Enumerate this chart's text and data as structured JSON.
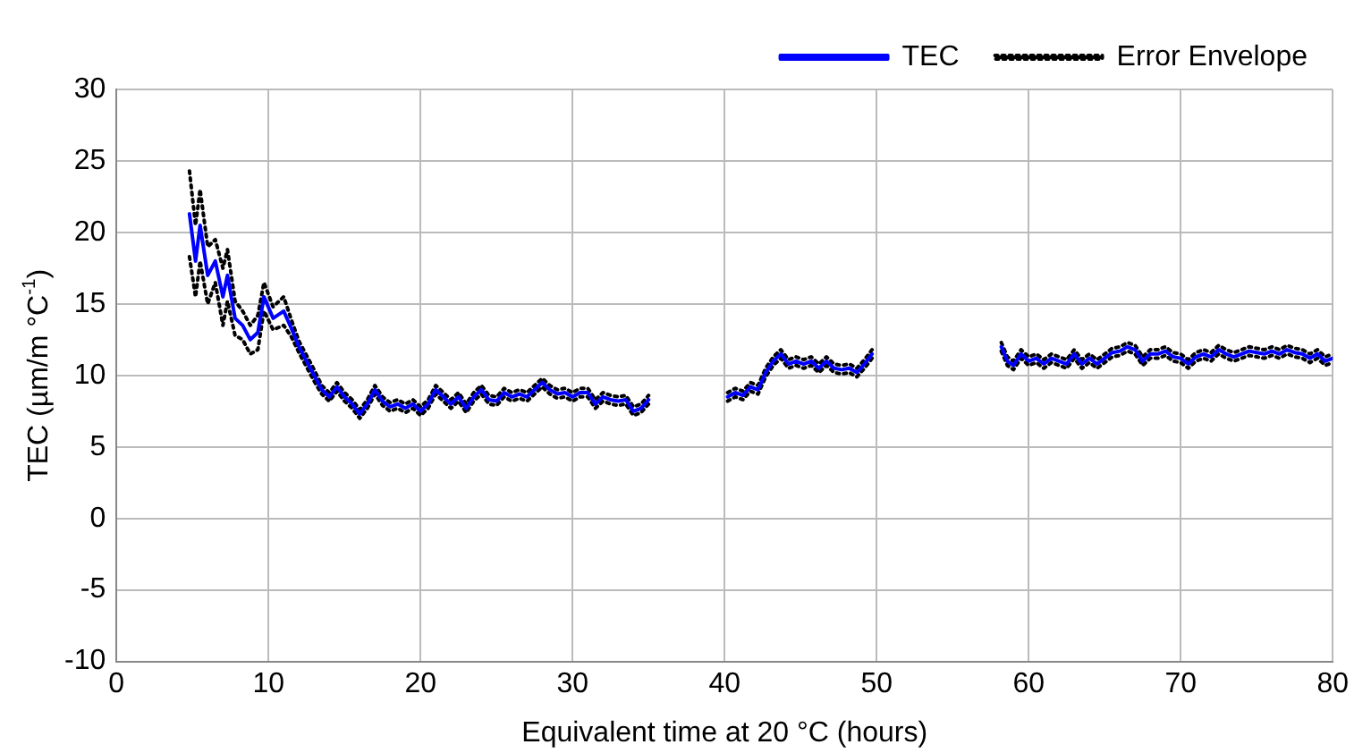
{
  "chart_data": {
    "type": "line",
    "xlabel": "Equivalent time at 20 °C (hours)",
    "ylabel": "TEC (µm/m °C$^{-1}$)",
    "xlim": [
      0,
      80
    ],
    "xticks": [
      0,
      10,
      20,
      30,
      40,
      50,
      60,
      70,
      80
    ],
    "ylim": [
      -10,
      30
    ],
    "yticks": [
      -10,
      -5,
      0,
      5,
      10,
      15,
      20,
      25,
      30
    ],
    "grid": true,
    "legend": "top right",
    "marker": "none",
    "x": [
      4.8,
      5.2,
      5.5,
      6.0,
      6.5,
      7.0,
      7.3,
      7.8,
      8.3,
      8.8,
      9.3,
      9.7,
      10.3,
      11.0,
      11.5,
      12.0,
      12.5,
      13.0,
      13.5,
      14.0,
      14.5,
      15.0,
      15.5,
      16.0,
      16.5,
      17.0,
      17.5,
      18.0,
      18.5,
      19.0,
      19.5,
      20.0,
      20.5,
      21.0,
      21.5,
      22.0,
      22.5,
      23.0,
      23.5,
      24.0,
      24.5,
      25.0,
      25.5,
      26.0,
      26.5,
      27.0,
      27.5,
      28.0,
      28.5,
      29.0,
      29.5,
      30.0,
      30.5,
      31.0,
      31.5,
      32.0,
      32.5,
      33.0,
      33.5,
      34.0,
      34.5,
      35.0,
      37.5,
      40.2,
      40.7,
      41.2,
      41.7,
      42.2,
      42.7,
      43.2,
      43.7,
      44.2,
      44.7,
      45.2,
      45.7,
      46.2,
      46.7,
      47.2,
      47.7,
      48.2,
      48.7,
      49.2,
      49.7,
      54.0,
      58.2,
      58.6,
      59.0,
      59.5,
      60.0,
      60.5,
      61.0,
      61.5,
      62.0,
      62.5,
      63.0,
      63.5,
      64.0,
      64.5,
      65.0,
      65.5,
      66.0,
      66.5,
      67.0,
      67.5,
      68.0,
      68.5,
      69.0,
      69.5,
      70.0,
      70.5,
      71.0,
      71.5,
      72.0,
      72.5,
      73.0,
      73.5,
      74.0,
      74.5,
      75.0,
      75.5,
      76.0,
      76.5,
      77.0,
      77.5,
      78.0,
      78.5,
      79.0,
      79.5,
      80.0
    ],
    "series": [
      {
        "name": "TEC",
        "color": "#0000ff",
        "line_style": "solid",
        "values": [
          21.3,
          18.0,
          20.5,
          17.0,
          18.0,
          15.5,
          17.0,
          14.0,
          13.5,
          12.5,
          13.0,
          15.5,
          14.0,
          14.5,
          13.3,
          12.0,
          11.0,
          10.0,
          9.0,
          8.5,
          9.2,
          8.5,
          8.0,
          7.3,
          8.0,
          9.0,
          8.2,
          7.8,
          8.0,
          7.7,
          8.0,
          7.5,
          8.0,
          9.0,
          8.5,
          8.0,
          8.5,
          7.7,
          8.5,
          9.0,
          8.3,
          8.2,
          8.8,
          8.5,
          8.7,
          8.5,
          9.0,
          9.5,
          9.0,
          8.7,
          8.8,
          8.5,
          8.8,
          8.8,
          8.0,
          8.5,
          8.3,
          8.2,
          8.3,
          7.5,
          7.7,
          8.3,
          null,
          8.5,
          8.8,
          8.6,
          9.2,
          9.0,
          10.2,
          11.0,
          11.5,
          10.8,
          11.0,
          10.8,
          11.0,
          10.5,
          11.0,
          10.5,
          10.4,
          10.5,
          10.2,
          10.8,
          11.5,
          null,
          12.0,
          11.0,
          10.7,
          11.5,
          11.0,
          11.2,
          10.8,
          11.2,
          11.0,
          10.8,
          11.5,
          10.8,
          11.2,
          10.8,
          11.2,
          11.6,
          11.7,
          12.0,
          11.8,
          11.0,
          11.5,
          11.5,
          11.7,
          11.3,
          11.2,
          10.8,
          11.3,
          11.5,
          11.3,
          11.8,
          11.5,
          11.3,
          11.5,
          11.7,
          11.6,
          11.5,
          11.7,
          11.5,
          11.8,
          11.6,
          11.5,
          11.2,
          11.5,
          11.0,
          11.2
        ]
      },
      {
        "name": "Error Envelope",
        "color": "#000000",
        "line_style": "dotted",
        "values": [
          24.3,
          20.5,
          23.0,
          19.0,
          19.5,
          17.5,
          18.8,
          15.2,
          14.5,
          13.5,
          14.2,
          16.5,
          14.8,
          15.5,
          13.9,
          12.4,
          11.4,
          10.4,
          9.3,
          8.8,
          9.5,
          8.8,
          8.3,
          7.6,
          8.3,
          9.3,
          8.5,
          8.1,
          8.3,
          8.0,
          8.3,
          7.8,
          8.3,
          9.3,
          8.8,
          8.3,
          8.8,
          8.0,
          8.8,
          9.3,
          8.6,
          8.5,
          9.1,
          8.8,
          9.0,
          8.8,
          9.3,
          9.8,
          9.3,
          9.0,
          9.1,
          8.8,
          9.1,
          9.1,
          8.3,
          8.8,
          8.6,
          8.5,
          8.6,
          7.8,
          8.0,
          8.6,
          null,
          8.8,
          9.1,
          8.9,
          9.5,
          9.3,
          10.5,
          11.3,
          11.8,
          11.1,
          11.3,
          11.1,
          11.3,
          10.8,
          11.3,
          10.8,
          10.7,
          10.8,
          10.5,
          11.1,
          11.8,
          null,
          12.3,
          11.3,
          11.0,
          11.8,
          11.3,
          11.5,
          11.1,
          11.5,
          11.3,
          11.1,
          11.8,
          11.1,
          11.5,
          11.1,
          11.5,
          11.9,
          12.0,
          12.3,
          12.1,
          11.3,
          11.8,
          11.8,
          12.0,
          11.6,
          11.5,
          11.1,
          11.6,
          11.8,
          11.6,
          12.1,
          11.8,
          11.6,
          11.8,
          12.0,
          11.9,
          11.8,
          12.0,
          11.8,
          12.1,
          11.9,
          11.8,
          11.5,
          11.8,
          11.3,
          11.5
        ]
      },
      {
        "color": "#000000",
        "line_style": "dotted",
        "values": [
          18.3,
          15.5,
          18.0,
          15.0,
          16.5,
          13.5,
          15.2,
          12.8,
          12.5,
          11.5,
          11.8,
          14.5,
          13.2,
          13.5,
          12.7,
          11.6,
          10.6,
          9.6,
          8.7,
          8.2,
          8.9,
          8.2,
          7.7,
          7.0,
          7.7,
          8.7,
          7.9,
          7.5,
          7.7,
          7.4,
          7.7,
          7.2,
          7.7,
          8.7,
          8.2,
          7.7,
          8.2,
          7.4,
          8.2,
          8.7,
          8.0,
          7.9,
          8.5,
          8.2,
          8.4,
          8.2,
          8.7,
          9.2,
          8.7,
          8.4,
          8.5,
          8.2,
          8.5,
          8.5,
          7.7,
          8.2,
          8.0,
          7.9,
          8.0,
          7.2,
          7.4,
          8.0,
          null,
          8.2,
          8.5,
          8.3,
          8.9,
          8.7,
          9.9,
          10.7,
          11.2,
          10.5,
          10.7,
          10.5,
          10.7,
          10.2,
          10.7,
          10.2,
          10.1,
          10.2,
          9.9,
          10.5,
          11.2,
          null,
          11.7,
          10.7,
          10.4,
          11.2,
          10.7,
          10.9,
          10.5,
          10.9,
          10.7,
          10.5,
          11.2,
          10.5,
          10.9,
          10.5,
          10.9,
          11.3,
          11.4,
          11.7,
          11.5,
          10.7,
          11.2,
          11.2,
          11.4,
          11.0,
          10.9,
          10.5,
          11.0,
          11.2,
          11.0,
          11.5,
          11.2,
          11.0,
          11.2,
          11.4,
          11.3,
          11.2,
          11.4,
          11.2,
          11.5,
          11.3,
          11.2,
          10.9,
          11.2,
          10.7,
          10.9
        ]
      }
    ]
  }
}
